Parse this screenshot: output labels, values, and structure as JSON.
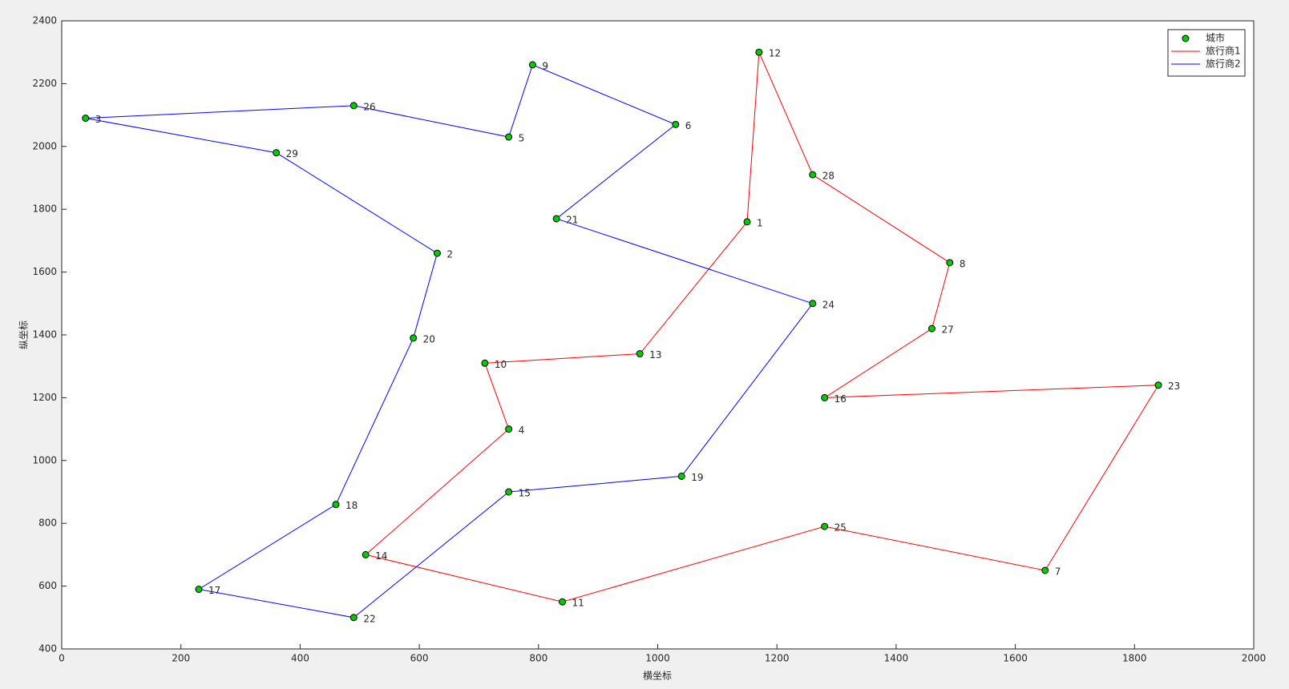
{
  "chart_data": {
    "type": "scatter",
    "xlabel": "横坐标",
    "ylabel": "纵坐标",
    "xlim": [
      0,
      2000
    ],
    "ylim": [
      400,
      2400
    ],
    "xticks": [
      0,
      200,
      400,
      600,
      800,
      1000,
      1200,
      1400,
      1600,
      1800,
      2000
    ],
    "yticks": [
      400,
      600,
      800,
      1000,
      1200,
      1400,
      1600,
      1800,
      2000,
      2200,
      2400
    ],
    "legend": "top-right",
    "series": [
      {
        "name": "城市",
        "type": "scatter",
        "color": "#00cc00",
        "labels": [
          "1",
          "2",
          "3",
          "4",
          "5",
          "6",
          "7",
          "8",
          "9",
          "10",
          "11",
          "12",
          "13",
          "14",
          "15",
          "16",
          "17",
          "18",
          "19",
          "20",
          "21",
          "22",
          "23",
          "24",
          "25",
          "26",
          "27",
          "28",
          "29"
        ],
        "x": [
          1150,
          630,
          40,
          750,
          750,
          1030,
          1650,
          1490,
          790,
          710,
          840,
          1170,
          970,
          510,
          750,
          1280,
          230,
          460,
          1040,
          590,
          830,
          490,
          1840,
          1260,
          1280,
          490,
          1460,
          1260,
          360
        ],
        "values": [
          1760,
          1660,
          2090,
          1100,
          2030,
          2070,
          650,
          1630,
          2260,
          1310,
          550,
          2300,
          1340,
          700,
          900,
          1200,
          590,
          860,
          950,
          1390,
          1770,
          500,
          1240,
          1500,
          790,
          2130,
          1420,
          1910,
          1980
        ]
      },
      {
        "name": "旅行商1",
        "type": "line",
        "color": "#ff0000",
        "x": [
          1150,
          1170,
          1260,
          1490,
          1460,
          1280,
          1840,
          1650,
          1280,
          840,
          510,
          750,
          710,
          970,
          1150
        ],
        "values": [
          1760,
          2300,
          1910,
          1630,
          1420,
          1200,
          1240,
          650,
          790,
          550,
          700,
          1100,
          1310,
          1340,
          1760
        ]
      },
      {
        "name": "旅行商2",
        "type": "line",
        "color": "#0000ff",
        "x": [
          1260,
          830,
          1030,
          790,
          750,
          490,
          40,
          360,
          630,
          590,
          460,
          230,
          490,
          750,
          1040,
          1260
        ],
        "values": [
          1500,
          1770,
          2070,
          2260,
          2030,
          2130,
          2090,
          1980,
          1660,
          1390,
          860,
          590,
          500,
          900,
          950,
          1500
        ]
      }
    ]
  }
}
